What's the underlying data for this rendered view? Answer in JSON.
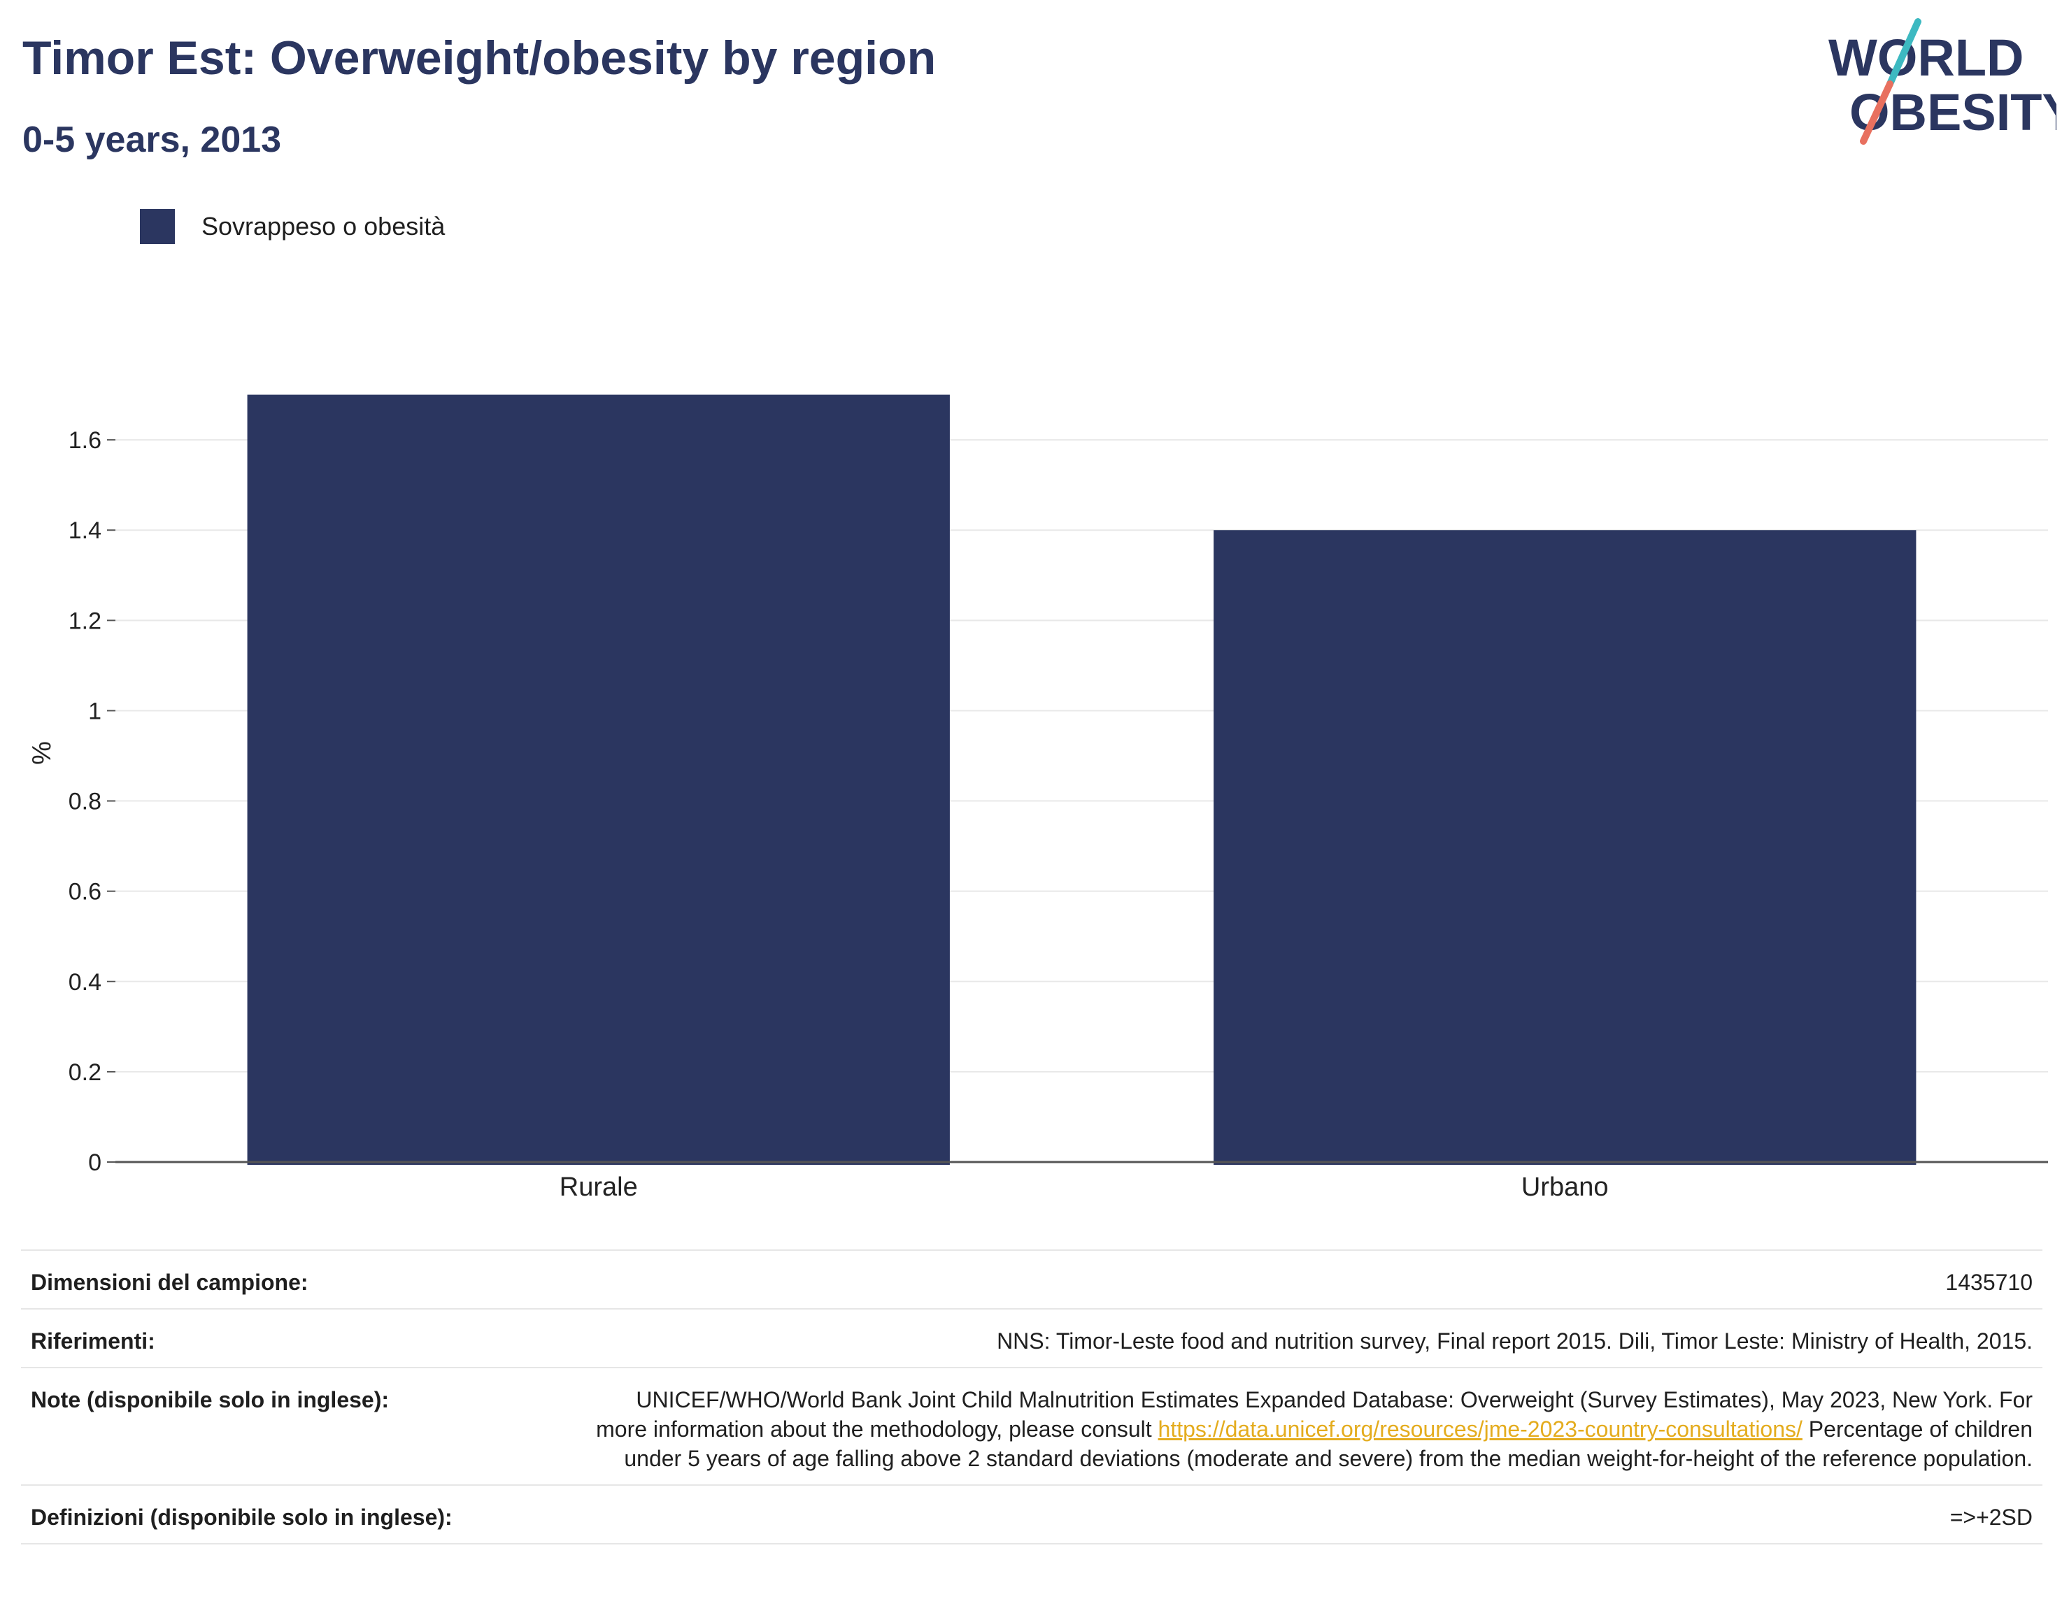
{
  "header": {
    "title": "Timor Est: Overweight/obesity by region",
    "subtitle": "0-5 years, 2013"
  },
  "logo": {
    "line1": "WORLD",
    "line2": "OBESITY",
    "colors": {
      "text": "#2b3660",
      "slash_top": "#3db9c1",
      "slash_bottom": "#e8705f"
    }
  },
  "colors": {
    "bar": "#2b3660",
    "grid": "#e8e8e8",
    "axis": "#555555"
  },
  "chart_data": {
    "type": "bar",
    "categories": [
      "Rurale",
      "Urbano"
    ],
    "series": [
      {
        "name": "Sovrappeso o obesità",
        "values": [
          1.7,
          1.4
        ]
      }
    ],
    "ylabel": "%",
    "ylim": [
      0,
      1.8
    ],
    "yticks": [
      0,
      0.2,
      0.4,
      0.6,
      0.8,
      1,
      1.2,
      1.4,
      1.6
    ],
    "ytick_labels": [
      "0",
      "0.2",
      "0.4",
      "0.6",
      "0.8",
      "1",
      "1.2",
      "1.4",
      "1.6"
    ],
    "grid": true,
    "legend_position": "top-left"
  },
  "footer": {
    "sample_label": "Dimensioni del campione:",
    "sample_value": "1435710",
    "references_label": "Riferimenti:",
    "references_value": "NNS: Timor-Leste food and nutrition survey, Final report 2015. Dili, Timor Leste: Ministry of Health, 2015.",
    "notes_label": "Note (disponibile solo in inglese):",
    "notes_text_1": "UNICEF/WHO/World Bank Joint Child Malnutrition Estimates Expanded Database: Overweight (Survey Estimates), May 2023, New York. For more information about the methodology, please consult ",
    "notes_link": "https://data.unicef.org/resources/jme-2023-country-consultations/",
    "notes_text_2": " Percentage of children under 5 years of age falling above 2 standard deviations (moderate and severe) from the median weight-for-height of the reference population.",
    "definitions_label": "Definizioni (disponibile solo in inglese):",
    "definitions_value": "=>+2SD"
  }
}
